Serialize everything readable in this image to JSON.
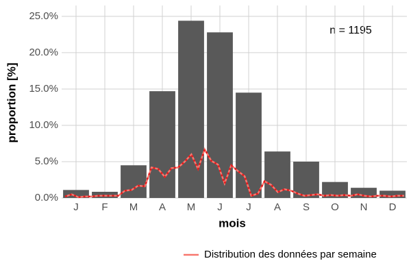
{
  "chart_data": {
    "type": "bar",
    "xlabel": "mois",
    "ylabel": "proportion [%]",
    "annotation": "n = 1195",
    "categories": [
      "J",
      "F",
      "M",
      "A",
      "M",
      "J",
      "J",
      "A",
      "S",
      "O",
      "N",
      "D"
    ],
    "values": [
      1.1,
      0.85,
      4.5,
      14.7,
      24.4,
      22.8,
      14.5,
      6.4,
      5.0,
      2.2,
      1.4,
      1.0
    ],
    "color": "#595959",
    "ylim": [
      0,
      26.5
    ],
    "yticks": [
      {
        "value": 0,
        "label": "0.0%"
      },
      {
        "value": 5,
        "label": "5.0%"
      },
      {
        "value": 10,
        "label": "10.0%"
      },
      {
        "value": 15,
        "label": "15.0%"
      },
      {
        "value": 20,
        "label": "20.0%"
      },
      {
        "value": 25,
        "label": "25.0%"
      }
    ],
    "grid": true,
    "legend": "bottom-right",
    "line": {
      "name": "Distribution des données par semaine",
      "color": "#f8766d",
      "dash_color": "#e41a1c",
      "values": [
        0.2,
        0.5,
        0.1,
        0.2,
        0.2,
        0.3,
        0.3,
        0.3,
        0.3,
        1.0,
        1.1,
        1.7,
        1.6,
        4.2,
        4.0,
        2.9,
        4.1,
        4.2,
        5.0,
        6.0,
        4.0,
        6.7,
        5.1,
        4.6,
        2.0,
        4.5,
        3.7,
        3.0,
        0.3,
        0.6,
        2.3,
        1.8,
        0.8,
        1.2,
        1.0,
        0.6,
        0.3,
        0.4,
        0.5,
        0.3,
        0.4,
        0.3,
        0.4,
        0.3,
        0.5,
        0.3,
        0.2,
        0.3,
        0.3,
        0.2,
        0.3,
        0.3
      ]
    }
  }
}
